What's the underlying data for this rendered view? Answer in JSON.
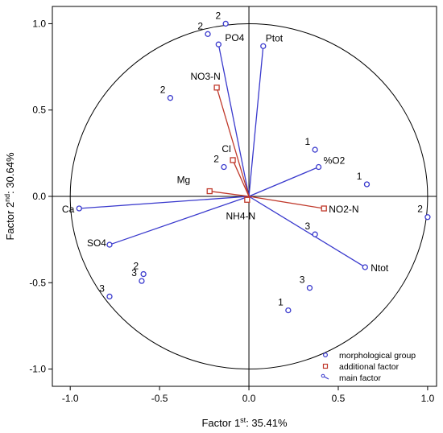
{
  "chart_data": {
    "type": "scatter",
    "xlabel": {
      "base": "Factor 1",
      "sup": "st",
      "rest": ": 35.41%"
    },
    "ylabel": {
      "base": "Factor 2",
      "sup": "nd",
      "rest": ": 30.64%"
    },
    "xlim": [
      -1.1,
      1.05
    ],
    "ylim": [
      -1.1,
      1.1
    ],
    "xticks": [
      -1.0,
      -0.5,
      0.0,
      0.5,
      1.0
    ],
    "yticks": [
      -1.0,
      -0.5,
      0.0,
      0.5,
      1.0
    ],
    "xtick_labels": [
      "-1.0",
      "-0.5",
      "0.0",
      "0.5",
      "1.0"
    ],
    "ytick_labels": [
      "-1.0",
      "-0.5",
      "0.0",
      "0.5",
      "1.0"
    ],
    "unit_circle": true,
    "grid": false,
    "legend_position": "bottom-right",
    "colors": {
      "main": "#3a3acd",
      "additional": "#c0392b",
      "axis": "#000000"
    },
    "legend": [
      {
        "label": "morphological group",
        "marker": "circle"
      },
      {
        "label": "additional factor",
        "marker": "square"
      },
      {
        "label": "main factor",
        "marker": "line"
      }
    ],
    "main_factors": [
      {
        "name": "Ptot",
        "x": 0.08,
        "y": 0.87
      },
      {
        "name": "PO4",
        "x": -0.17,
        "y": 0.88
      },
      {
        "name": "%O2",
        "x": 0.39,
        "y": 0.17
      },
      {
        "name": "Ca",
        "x": -0.95,
        "y": -0.07
      },
      {
        "name": "SO4",
        "x": -0.78,
        "y": -0.28
      },
      {
        "name": "Ntot",
        "x": 0.65,
        "y": -0.41
      }
    ],
    "additional_factors": [
      {
        "name": "NO3-N",
        "x": -0.18,
        "y": 0.63
      },
      {
        "name": "Cl",
        "x": -0.09,
        "y": 0.21
      },
      {
        "name": "Mg",
        "x": -0.22,
        "y": 0.03
      },
      {
        "name": "NO2-N",
        "x": 0.42,
        "y": -0.07
      },
      {
        "name": "NH4-N",
        "x": -0.01,
        "y": -0.02
      }
    ],
    "morphological_groups": [
      {
        "label": "2",
        "x": -0.23,
        "y": 0.94
      },
      {
        "label": "2",
        "x": -0.13,
        "y": 1.0
      },
      {
        "label": "2",
        "x": -0.44,
        "y": 0.57
      },
      {
        "label": "2",
        "x": -0.14,
        "y": 0.17
      },
      {
        "label": "1",
        "x": 0.37,
        "y": 0.27
      },
      {
        "label": "1",
        "x": 0.66,
        "y": 0.07
      },
      {
        "label": "2",
        "x": 1.0,
        "y": -0.12
      },
      {
        "label": "3",
        "x": 0.37,
        "y": -0.22
      },
      {
        "label": "3",
        "x": 0.34,
        "y": -0.53
      },
      {
        "label": "1",
        "x": 0.22,
        "y": -0.66
      },
      {
        "label": "2",
        "x": -0.59,
        "y": -0.45
      },
      {
        "label": "3",
        "x": -0.6,
        "y": -0.49
      },
      {
        "label": "3",
        "x": -0.78,
        "y": -0.58
      }
    ]
  }
}
